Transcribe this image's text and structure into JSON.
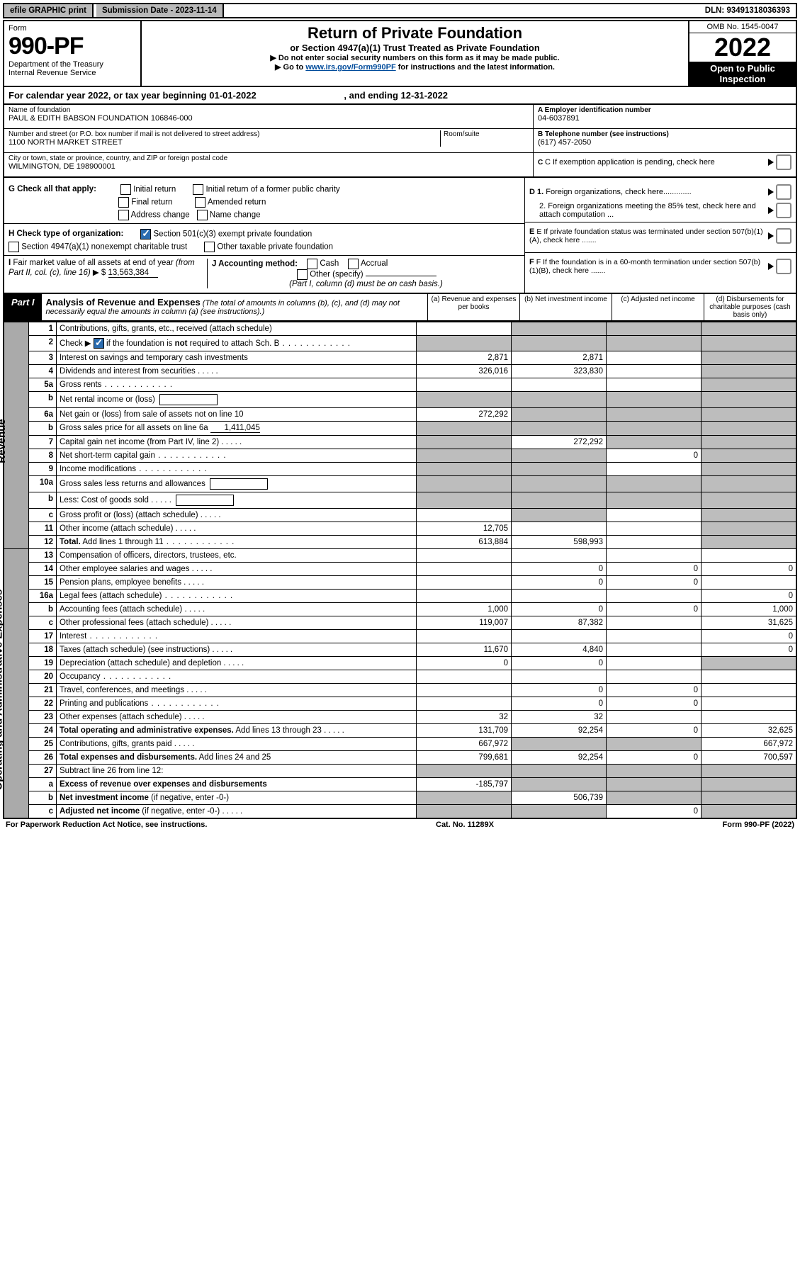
{
  "colors": {
    "header_bg": "#b9b9b9",
    "black": "#000000",
    "grey_cell": "#bdbdbd",
    "side_bg": "#aaaaaa",
    "link": "#004b9b",
    "check_blue": "#2b6cb0"
  },
  "top": {
    "efile": "efile GRAPHIC print",
    "submission_label": "Submission Date - ",
    "submission_date": "2023-11-14",
    "dln_label": "DLN: ",
    "dln": "93491318036393"
  },
  "header": {
    "form_label": "Form",
    "form_number": "990-PF",
    "dept": "Department of the Treasury",
    "irs": "Internal Revenue Service",
    "title": "Return of Private Foundation",
    "subtitle": "or Section 4947(a)(1) Trust Treated as Private Foundation",
    "note1": "▶ Do not enter social security numbers on this form as it may be made public.",
    "note2_pre": "▶ Go to ",
    "note2_link": "www.irs.gov/Form990PF",
    "note2_post": " for instructions and the latest information.",
    "omb": "OMB No. 1545-0047",
    "year": "2022",
    "open": "Open to Public Inspection"
  },
  "cal_year": {
    "text_pre": "For calendar year 2022, or tax year beginning ",
    "begin": "01-01-2022",
    "text_mid": ", and ending ",
    "end": "12-31-2022"
  },
  "meta": {
    "name_label": "Name of foundation",
    "name": "PAUL & EDITH BABSON FOUNDATION 106846-000",
    "addr_label": "Number and street (or P.O. box number if mail is not delivered to street address)",
    "addr": "1100 NORTH MARKET STREET",
    "room_label": "Room/suite",
    "city_label": "City or town, state or province, country, and ZIP or foreign postal code",
    "city": "WILMINGTON, DE  198900001",
    "ein_label": "A Employer identification number",
    "ein": "04-6037891",
    "tel_label": "B Telephone number (see instructions)",
    "tel": "(617) 457-2050",
    "c_label": "C If exemption application is pending, check here",
    "d1": "D 1. Foreign organizations, check here.............",
    "d2": "2. Foreign organizations meeting the 85% test, check here and attach computation ...",
    "e_label": "E  If private foundation status was terminated under section 507(b)(1)(A), check here .......",
    "f_label": "F  If the foundation is in a 60-month termination under section 507(b)(1)(B), check here .......",
    "g_label": "G Check all that apply:",
    "g_opts": [
      "Initial return",
      "Initial return of a former public charity",
      "Final return",
      "Amended return",
      "Address change",
      "Name change"
    ],
    "h_label": "H Check type of organization:",
    "h1": "Section 501(c)(3) exempt private foundation",
    "h2": "Section 4947(a)(1) nonexempt charitable trust",
    "h3": "Other taxable private foundation",
    "i_label": "I Fair market value of all assets at end of year (from Part II, col. (c), line 16) ▶ $",
    "i_val": "13,563,384",
    "j_label": "J Accounting method:",
    "j_cash": "Cash",
    "j_accrual": "Accrual",
    "j_other": "Other (specify)",
    "j_note": "(Part I, column (d) must be on cash basis.)"
  },
  "part1": {
    "label": "Part I",
    "title": "Analysis of Revenue and Expenses",
    "note": " (The total of amounts in columns (b), (c), and (d) may not necessarily equal the amounts in column (a) (see instructions).)",
    "col_a": "(a) Revenue and expenses per books",
    "col_b": "(b) Net investment income",
    "col_c": "(c) Adjusted net income",
    "col_d": "(d) Disbursements for charitable purposes (cash basis only)"
  },
  "side_labels": {
    "revenue": "Revenue",
    "expenses": "Operating and Administrative Expenses"
  },
  "rows": [
    {
      "n": "1",
      "t": "Contributions, gifts, grants, etc., received (attach schedule)",
      "a": "",
      "b": "g",
      "c": "g",
      "d": "g"
    },
    {
      "n": "2",
      "t": "Check ▶ ☑ if the foundation is <b>not</b> required to attach Sch. B",
      "dots": true,
      "a": "g",
      "b": "g",
      "c": "g",
      "d": "g"
    },
    {
      "n": "3",
      "t": "Interest on savings and temporary cash investments",
      "a": "2,871",
      "b": "2,871",
      "c": "",
      "d": "g"
    },
    {
      "n": "4",
      "t": "Dividends and interest from securities",
      "dots": "s",
      "a": "326,016",
      "b": "323,830",
      "c": "",
      "d": "g"
    },
    {
      "n": "5a",
      "t": "Gross rents",
      "dots": true,
      "a": "",
      "b": "",
      "c": "",
      "d": "g"
    },
    {
      "n": "b",
      "t": "Net rental income or (loss)",
      "box": true,
      "a": "g",
      "b": "g",
      "c": "g",
      "d": "g"
    },
    {
      "n": "6a",
      "t": "Net gain or (loss) from sale of assets not on line 10",
      "a": "272,292",
      "b": "g",
      "c": "g",
      "d": "g"
    },
    {
      "n": "b",
      "t": "Gross sales price for all assets on line 6a",
      "uline": "1,411,045",
      "a": "g",
      "b": "g",
      "c": "g",
      "d": "g"
    },
    {
      "n": "7",
      "t": "Capital gain net income (from Part IV, line 2)",
      "dots": "s",
      "a": "g",
      "b": "272,292",
      "c": "g",
      "d": "g"
    },
    {
      "n": "8",
      "t": "Net short-term capital gain",
      "dots": true,
      "a": "g",
      "b": "g",
      "c": "0",
      "d": "g"
    },
    {
      "n": "9",
      "t": "Income modifications",
      "dots": true,
      "a": "g",
      "b": "g",
      "c": "",
      "d": "g"
    },
    {
      "n": "10a",
      "t": "Gross sales less returns and allowances",
      "box": true,
      "a": "g",
      "b": "g",
      "c": "g",
      "d": "g"
    },
    {
      "n": "b",
      "t": "Less: Cost of goods sold",
      "dots": "s",
      "box": true,
      "a": "g",
      "b": "g",
      "c": "g",
      "d": "g"
    },
    {
      "n": "c",
      "t": "Gross profit or (loss) (attach schedule)",
      "dots": "s",
      "a": "",
      "b": "g",
      "c": "",
      "d": "g"
    },
    {
      "n": "11",
      "t": "Other income (attach schedule)",
      "dots": "s",
      "a": "12,705",
      "b": "",
      "c": "",
      "d": "g"
    },
    {
      "n": "12",
      "t": "<b>Total.</b> Add lines 1 through 11",
      "dots": true,
      "a": "613,884",
      "b": "598,993",
      "c": "",
      "d": "g"
    },
    {
      "n": "13",
      "t": "Compensation of officers, directors, trustees, etc.",
      "a": "",
      "b": "",
      "c": "",
      "d": ""
    },
    {
      "n": "14",
      "t": "Other employee salaries and wages",
      "dots": "s",
      "a": "",
      "b": "0",
      "c": "0",
      "d": "0"
    },
    {
      "n": "15",
      "t": "Pension plans, employee benefits",
      "dots": "s",
      "a": "",
      "b": "0",
      "c": "0",
      "d": ""
    },
    {
      "n": "16a",
      "t": "Legal fees (attach schedule)",
      "dots": true,
      "a": "",
      "b": "",
      "c": "",
      "d": "0"
    },
    {
      "n": "b",
      "t": "Accounting fees (attach schedule)",
      "dots": "s",
      "a": "1,000",
      "b": "0",
      "c": "0",
      "d": "1,000"
    },
    {
      "n": "c",
      "t": "Other professional fees (attach schedule)",
      "dots": "s",
      "a": "119,007",
      "b": "87,382",
      "c": "",
      "d": "31,625"
    },
    {
      "n": "17",
      "t": "Interest",
      "dots": true,
      "a": "",
      "b": "",
      "c": "",
      "d": "0"
    },
    {
      "n": "18",
      "t": "Taxes (attach schedule) (see instructions)",
      "dots": "s",
      "a": "11,670",
      "b": "4,840",
      "c": "",
      "d": "0"
    },
    {
      "n": "19",
      "t": "Depreciation (attach schedule) and depletion",
      "dots": "s",
      "a": "0",
      "b": "0",
      "c": "",
      "d": "g"
    },
    {
      "n": "20",
      "t": "Occupancy",
      "dots": true,
      "a": "",
      "b": "",
      "c": "",
      "d": ""
    },
    {
      "n": "21",
      "t": "Travel, conferences, and meetings",
      "dots": "s",
      "a": "",
      "b": "0",
      "c": "0",
      "d": ""
    },
    {
      "n": "22",
      "t": "Printing and publications",
      "dots": true,
      "a": "",
      "b": "0",
      "c": "0",
      "d": ""
    },
    {
      "n": "23",
      "t": "Other expenses (attach schedule)",
      "dots": "s",
      "a": "32",
      "b": "32",
      "c": "",
      "d": ""
    },
    {
      "n": "24",
      "t": "<b>Total operating and administrative expenses.</b> Add lines 13 through 23",
      "dots": "s",
      "a": "131,709",
      "b": "92,254",
      "c": "0",
      "d": "32,625"
    },
    {
      "n": "25",
      "t": "Contributions, gifts, grants paid",
      "dots": "s",
      "a": "667,972",
      "b": "g",
      "c": "g",
      "d": "667,972"
    },
    {
      "n": "26",
      "t": "<b>Total expenses and disbursements.</b> Add lines 24 and 25",
      "a": "799,681",
      "b": "92,254",
      "c": "0",
      "d": "700,597"
    },
    {
      "n": "27",
      "t": "Subtract line 26 from line 12:",
      "a": "g",
      "b": "g",
      "c": "g",
      "d": "g"
    },
    {
      "n": "a",
      "t": "<b>Excess of revenue over expenses and disbursements</b>",
      "a": "-185,797",
      "b": "g",
      "c": "g",
      "d": "g"
    },
    {
      "n": "b",
      "t": "<b>Net investment income</b> (if negative, enter -0-)",
      "a": "g",
      "b": "506,739",
      "c": "g",
      "d": "g"
    },
    {
      "n": "c",
      "t": "<b>Adjusted net income</b> (if negative, enter -0-)",
      "dots": "s",
      "a": "g",
      "b": "g",
      "c": "0",
      "d": "g"
    }
  ],
  "footer": {
    "left": "For Paperwork Reduction Act Notice, see instructions.",
    "mid": "Cat. No. 11289X",
    "right": "Form 990-PF (2022)"
  }
}
